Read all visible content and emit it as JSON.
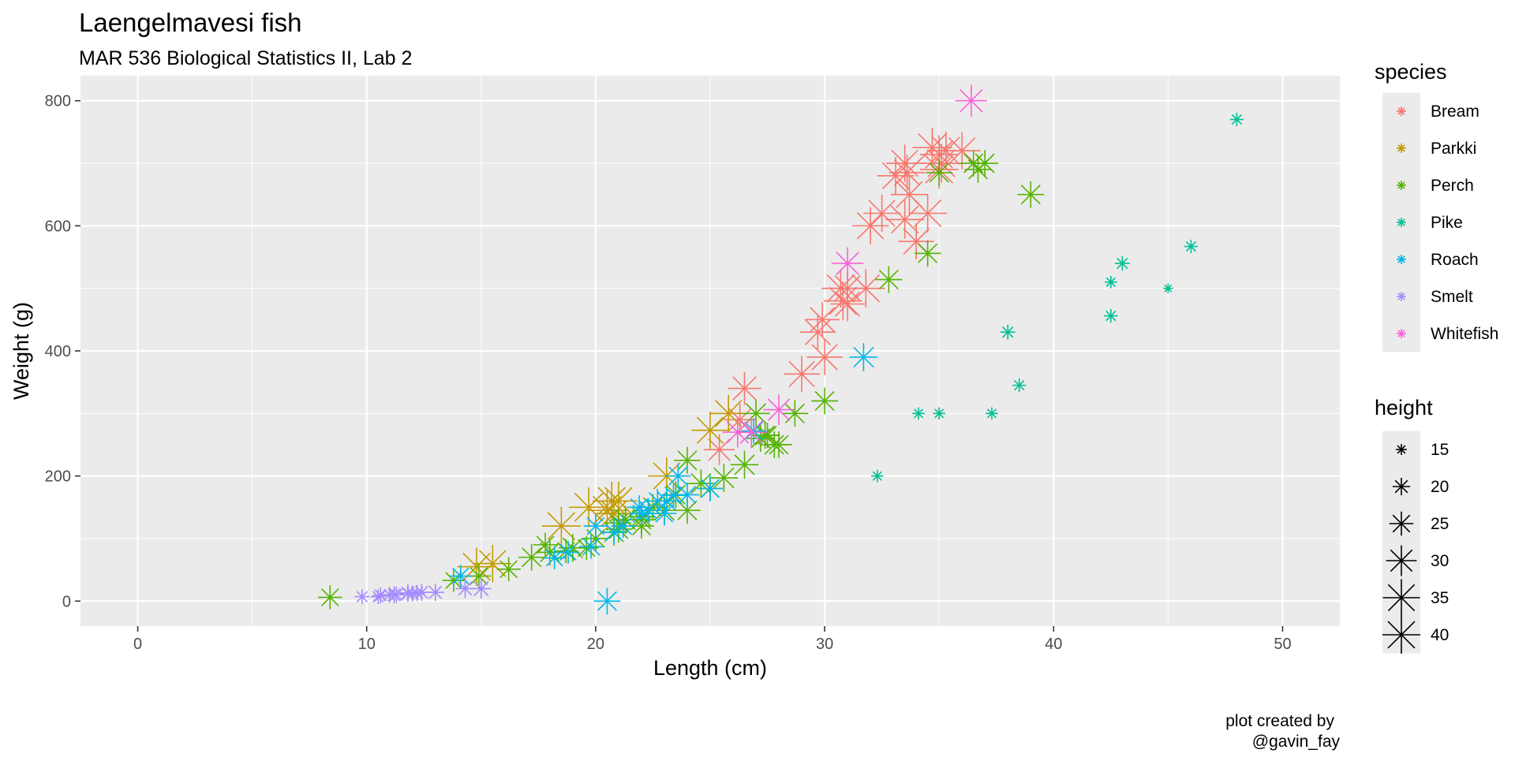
{
  "chart_data": {
    "type": "scatter",
    "title": "Laengelmavesi fish",
    "subtitle": "MAR 536 Biological Statistics II, Lab 2",
    "xlabel": "Length (cm)",
    "ylabel": "Weight (g)",
    "xlim": [
      -2.5,
      52.5
    ],
    "ylim": [
      -40,
      840
    ],
    "xticks": [
      0,
      10,
      20,
      30,
      40,
      50
    ],
    "yticks": [
      0,
      200,
      400,
      600,
      800
    ],
    "grid": true,
    "legend_position": "right",
    "caption": [
      "plot created by",
      "@gavin_fay"
    ],
    "color_legend": {
      "title": "species",
      "entries": [
        {
          "name": "Bream",
          "color": "#F8766D"
        },
        {
          "name": "Parkki",
          "color": "#C49A00"
        },
        {
          "name": "Perch",
          "color": "#53B400"
        },
        {
          "name": "Pike",
          "color": "#00C094"
        },
        {
          "name": "Roach",
          "color": "#00B6EB"
        },
        {
          "name": "Smelt",
          "color": "#A58AFF"
        },
        {
          "name": "Whitefish",
          "color": "#FB61D7"
        }
      ]
    },
    "size_legend": {
      "title": "height",
      "values": [
        15,
        20,
        25,
        30,
        35,
        40
      ]
    },
    "series": [
      {
        "name": "Bream",
        "points": [
          [
            25.4,
            242,
            30
          ],
          [
            26.3,
            290,
            31
          ],
          [
            26.5,
            340,
            32
          ],
          [
            29.0,
            363,
            34
          ],
          [
            29.7,
            430,
            34
          ],
          [
            29.9,
            450,
            33
          ],
          [
            30.0,
            390,
            34
          ],
          [
            30.7,
            500,
            36
          ],
          [
            31.0,
            475,
            33
          ],
          [
            31.0,
            500,
            34
          ],
          [
            31.8,
            500,
            36
          ],
          [
            32.0,
            600,
            35
          ],
          [
            32.5,
            620,
            35
          ],
          [
            33.1,
            680,
            35
          ],
          [
            33.5,
            700,
            35
          ],
          [
            33.6,
            685,
            34
          ],
          [
            33.7,
            650,
            35
          ],
          [
            34.5,
            620,
            36
          ],
          [
            34.7,
            725,
            37
          ],
          [
            35.0,
            714,
            36
          ],
          [
            35.1,
            700,
            36
          ],
          [
            35.3,
            720,
            36
          ],
          [
            36.0,
            720,
            35
          ],
          [
            34.0,
            575,
            34
          ],
          [
            33.5,
            610,
            36
          ],
          [
            30.8,
            480,
            36
          ],
          [
            35.0,
            690,
            36
          ]
        ]
      },
      {
        "name": "Parkki",
        "points": [
          [
            14.8,
            55,
            36
          ],
          [
            15.5,
            60,
            35
          ],
          [
            18.5,
            120,
            36
          ],
          [
            19.7,
            150,
            37
          ],
          [
            20.5,
            145,
            37
          ],
          [
            20.7,
            160,
            36
          ],
          [
            20.8,
            140,
            34
          ],
          [
            21.0,
            160,
            36
          ],
          [
            23.1,
            200,
            35
          ],
          [
            25.0,
            273,
            35
          ],
          [
            25.8,
            300,
            35
          ]
        ]
      },
      {
        "name": "Perch",
        "points": [
          [
            8.4,
            6,
            25
          ],
          [
            13.8,
            33,
            24
          ],
          [
            14.9,
            40,
            25
          ],
          [
            16.2,
            51,
            25
          ],
          [
            17.2,
            70,
            27
          ],
          [
            17.8,
            90,
            25
          ],
          [
            18.0,
            78,
            27
          ],
          [
            18.7,
            80,
            25
          ],
          [
            19.0,
            85,
            28
          ],
          [
            19.6,
            85,
            25
          ],
          [
            20.0,
            100,
            26
          ],
          [
            20.8,
            110,
            27
          ],
          [
            21.0,
            115,
            27
          ],
          [
            21.0,
            125,
            26
          ],
          [
            21.3,
            130,
            28
          ],
          [
            22.0,
            120,
            26
          ],
          [
            22.0,
            135,
            26
          ],
          [
            22.5,
            150,
            27
          ],
          [
            23.0,
            145,
            28
          ],
          [
            23.5,
            170,
            27
          ],
          [
            24.0,
            145,
            27
          ],
          [
            24.6,
            188,
            28
          ],
          [
            25.0,
            180,
            26
          ],
          [
            25.6,
            197,
            28
          ],
          [
            26.5,
            218,
            28
          ],
          [
            27.0,
            300,
            28
          ],
          [
            27.2,
            260,
            27
          ],
          [
            27.5,
            265,
            26
          ],
          [
            27.8,
            250,
            27
          ],
          [
            28.0,
            250,
            27
          ],
          [
            28.7,
            300,
            27
          ],
          [
            30.0,
            320,
            27
          ],
          [
            32.8,
            514,
            27
          ],
          [
            34.5,
            556,
            27
          ],
          [
            35.0,
            685,
            27
          ],
          [
            36.5,
            700,
            27
          ],
          [
            36.7,
            690,
            27
          ],
          [
            37.0,
            700,
            27
          ],
          [
            39.0,
            650,
            27
          ],
          [
            24.0,
            225,
            27
          ],
          [
            22.0,
            130,
            27
          ],
          [
            27.4,
            265,
            27
          ]
        ]
      },
      {
        "name": "Pike",
        "points": [
          [
            32.3,
            200,
            16
          ],
          [
            34.1,
            300,
            16
          ],
          [
            35.0,
            300,
            16
          ],
          [
            37.3,
            300,
            16
          ],
          [
            38.0,
            430,
            18
          ],
          [
            38.5,
            345,
            17
          ],
          [
            42.5,
            456,
            17
          ],
          [
            42.5,
            510,
            16
          ],
          [
            43.0,
            540,
            18
          ],
          [
            45.0,
            500,
            14
          ],
          [
            46.0,
            567,
            17
          ],
          [
            48.0,
            770,
            17
          ]
        ]
      },
      {
        "name": "Roach",
        "points": [
          [
            14.1,
            40,
            24
          ],
          [
            18.2,
            69,
            24
          ],
          [
            18.8,
            78,
            24
          ],
          [
            19.8,
            87,
            25
          ],
          [
            20.0,
            120,
            25
          ],
          [
            20.5,
            0,
            27
          ],
          [
            20.8,
            110,
            24
          ],
          [
            21.2,
            120,
            25
          ],
          [
            21.9,
            150,
            25
          ],
          [
            22.3,
            145,
            25
          ],
          [
            22.7,
            160,
            25
          ],
          [
            23.0,
            140,
            25
          ],
          [
            23.1,
            160,
            26
          ],
          [
            23.4,
            169,
            25
          ],
          [
            23.6,
            200,
            26
          ],
          [
            24.0,
            170,
            25
          ],
          [
            25.0,
            180,
            26
          ],
          [
            26.9,
            272,
            26
          ],
          [
            31.7,
            390,
            28
          ],
          [
            22.0,
            140,
            25
          ]
        ]
      },
      {
        "name": "Smelt",
        "points": [
          [
            9.8,
            7,
            18
          ],
          [
            10.5,
            7,
            18
          ],
          [
            10.6,
            9,
            19
          ],
          [
            11.0,
            10,
            19
          ],
          [
            11.2,
            10,
            20
          ],
          [
            11.3,
            10,
            19
          ],
          [
            11.8,
            12,
            19
          ],
          [
            11.8,
            13,
            20
          ],
          [
            12.0,
            12,
            19
          ],
          [
            12.2,
            13,
            19
          ],
          [
            12.4,
            14,
            20
          ],
          [
            13.0,
            14,
            20
          ],
          [
            14.3,
            20,
            21
          ],
          [
            15.0,
            20,
            22
          ]
        ]
      },
      {
        "name": "Whitefish",
        "points": [
          [
            26.2,
            270,
            30
          ],
          [
            26.8,
            270,
            31
          ],
          [
            28.0,
            306,
            30
          ],
          [
            31.0,
            540,
            31
          ],
          [
            36.4,
            800,
            31
          ]
        ]
      }
    ]
  }
}
